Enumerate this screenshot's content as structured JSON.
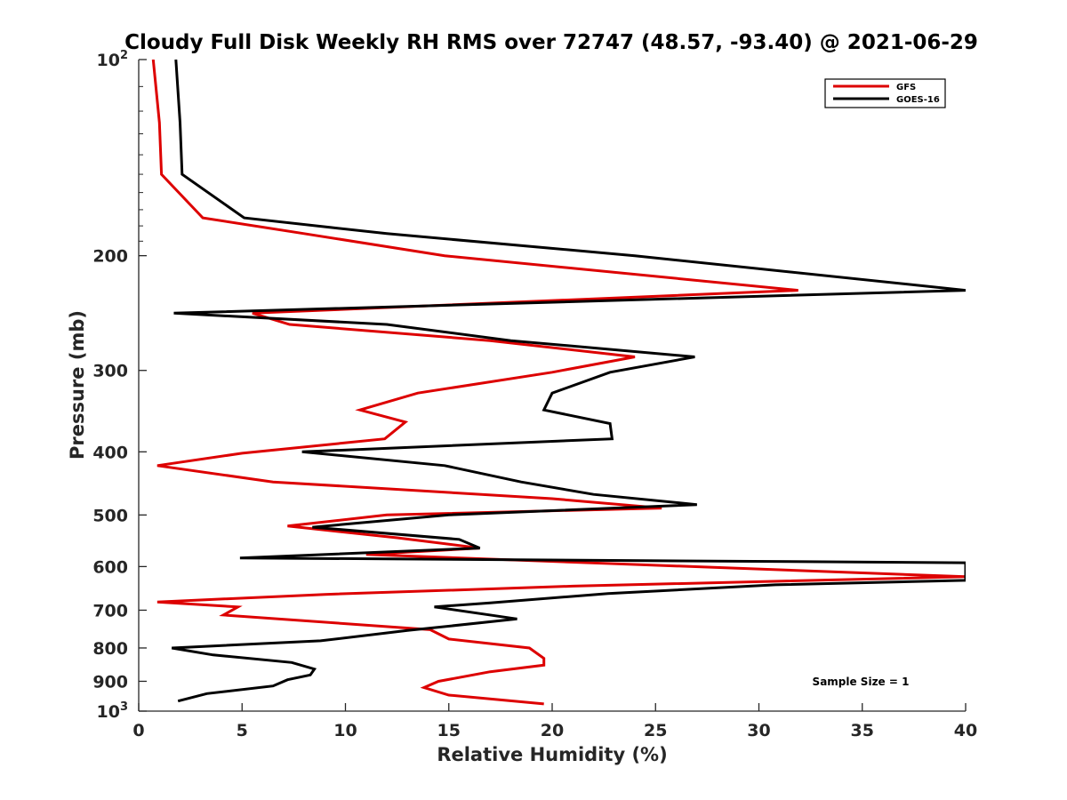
{
  "chart_data": {
    "type": "line",
    "title": "Cloudy Full Disk Weekly RH RMS over 72747 (48.57, -93.40) @ 2021-06-29",
    "xlabel": "Relative Humidity (%)",
    "ylabel": "Pressure (mb)",
    "xlim": [
      0,
      40
    ],
    "ylim": [
      100,
      1000
    ],
    "yscale": "log",
    "yreversed": true,
    "xticks": [
      0,
      5,
      10,
      15,
      20,
      25,
      30,
      35,
      40
    ],
    "yticks": [
      {
        "value": 100,
        "label": "10",
        "exp": "2"
      },
      {
        "value": 200,
        "label": "200"
      },
      {
        "value": 300,
        "label": "300"
      },
      {
        "value": 400,
        "label": "400"
      },
      {
        "value": 500,
        "label": "500"
      },
      {
        "value": 600,
        "label": "600"
      },
      {
        "value": 700,
        "label": "700"
      },
      {
        "value": 800,
        "label": "800"
      },
      {
        "value": 900,
        "label": "900"
      },
      {
        "value": 1000,
        "label": "10",
        "exp": "3"
      }
    ],
    "legend": "top-right",
    "annotation": "Sample Size = 1",
    "series": [
      {
        "name": "GFS",
        "color": "#dd0000",
        "points": [
          [
            0.7,
            100
          ],
          [
            1.0,
            125
          ],
          [
            1.1,
            150
          ],
          [
            3.1,
            175
          ],
          [
            8.0,
            185
          ],
          [
            14.8,
            200
          ],
          [
            31.9,
            226
          ],
          [
            5.5,
            245
          ],
          [
            7.3,
            255
          ],
          [
            17.0,
            270
          ],
          [
            24.0,
            286
          ],
          [
            20.0,
            302
          ],
          [
            13.5,
            325
          ],
          [
            10.7,
            345
          ],
          [
            12.9,
            360
          ],
          [
            11.9,
            382
          ],
          [
            5.0,
            402
          ],
          [
            0.9,
            420
          ],
          [
            6.5,
            445
          ],
          [
            20.0,
            472
          ],
          [
            25.3,
            488
          ],
          [
            12.0,
            500
          ],
          [
            7.2,
            520
          ],
          [
            12.5,
            542
          ],
          [
            16.5,
            562
          ],
          [
            11.0,
            575
          ],
          [
            40.0,
            622
          ],
          [
            21.0,
            643
          ],
          [
            9.0,
            662
          ],
          [
            0.9,
            680
          ],
          [
            4.8,
            692
          ],
          [
            4.1,
            712
          ],
          [
            14.1,
            750
          ],
          [
            15.0,
            775
          ],
          [
            18.9,
            800
          ],
          [
            19.6,
            830
          ],
          [
            19.6,
            850
          ],
          [
            17.0,
            870
          ],
          [
            14.5,
            900
          ],
          [
            13.8,
            920
          ],
          [
            15.0,
            945
          ],
          [
            19.6,
            975
          ]
        ]
      },
      {
        "name": "GOES-16",
        "color": "#000000",
        "points": [
          [
            1.8,
            100
          ],
          [
            2.0,
            125
          ],
          [
            2.1,
            150
          ],
          [
            5.1,
            175
          ],
          [
            12.0,
            185
          ],
          [
            24.0,
            200
          ],
          [
            40.0,
            226
          ],
          [
            1.7,
            245
          ],
          [
            12.0,
            255
          ],
          [
            18.0,
            270
          ],
          [
            26.9,
            286
          ],
          [
            22.8,
            302
          ],
          [
            20.0,
            325
          ],
          [
            19.6,
            345
          ],
          [
            22.8,
            362
          ],
          [
            22.9,
            382
          ],
          [
            7.9,
            400
          ],
          [
            14.8,
            420
          ],
          [
            18.5,
            445
          ],
          [
            22.0,
            465
          ],
          [
            27.0,
            482
          ],
          [
            15.0,
            500
          ],
          [
            8.4,
            522
          ],
          [
            15.5,
            545
          ],
          [
            16.5,
            562
          ],
          [
            4.9,
            582
          ],
          [
            40.0,
            592
          ],
          [
            40.0,
            630
          ],
          [
            30.8,
            640
          ],
          [
            22.7,
            660
          ],
          [
            17.0,
            682
          ],
          [
            14.3,
            692
          ],
          [
            18.3,
            722
          ],
          [
            13.0,
            752
          ],
          [
            8.8,
            780
          ],
          [
            1.6,
            800
          ],
          [
            3.6,
            820
          ],
          [
            7.4,
            842
          ],
          [
            8.5,
            862
          ],
          [
            8.3,
            880
          ],
          [
            7.2,
            895
          ],
          [
            6.5,
            915
          ],
          [
            3.3,
            940
          ],
          [
            1.9,
            965
          ]
        ]
      }
    ]
  }
}
